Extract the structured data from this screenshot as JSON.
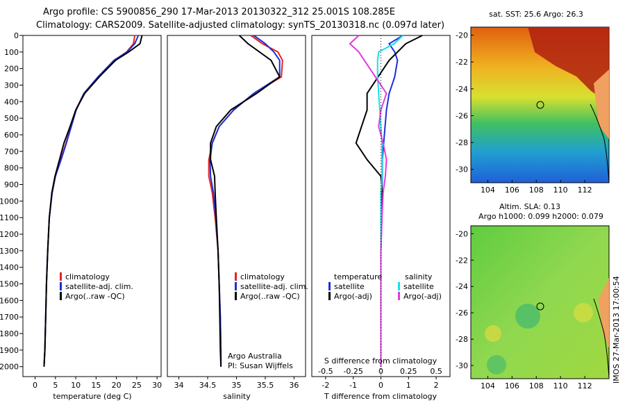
{
  "title": {
    "line1": "Argo profile: CS 5900856_290 17-Mar-2013 20130322_312 25.001S 108.285E",
    "line2": "Climatology: CARS2009. Satellite-adjusted climatology: synTS_20130318.nc (0.097d later)"
  },
  "depth_ticks": [
    "0",
    "100",
    "200",
    "300",
    "400",
    "500",
    "600",
    "700",
    "800",
    "900",
    "1000",
    "1100",
    "1200",
    "1300",
    "1400",
    "1500",
    "1600",
    "1700",
    "1800",
    "1900",
    "2000"
  ],
  "colors": {
    "climatology": "#e8221c",
    "satellite": "#1e2ed6",
    "argo": "#000000",
    "salinity_sat": "#16e0e8",
    "salinity_argo": "#e23ae0"
  },
  "panels": {
    "temperature": {
      "xlabel": "temperature (deg C)",
      "xticks": [
        "0",
        "5",
        "10",
        "15",
        "20",
        "25",
        "30"
      ],
      "legend": [
        "climatology",
        "satellite-adj. clim.",
        "Argo(..raw -QC)"
      ]
    },
    "salinity": {
      "xlabel": "salinity",
      "xticks": [
        "34",
        "34.5",
        "35",
        "35.5",
        "36"
      ],
      "legend": [
        "climatology",
        "satellite-adj. clim.",
        "Argo(..raw -QC)"
      ],
      "note1": "Argo Australia",
      "note2": "PI: Susan Wijffels"
    },
    "difference": {
      "xlabel_bottom": "T difference from climatology",
      "xlabel_top": "S difference from climatology",
      "xticks_bottom": [
        "-2",
        "-1",
        "0",
        "1",
        "2"
      ],
      "xticks_top": [
        "-0.5",
        "-0.25",
        "0",
        "0.25",
        "0.5"
      ],
      "legend_t_title": "temperature",
      "legend_t": [
        "satellite",
        "Argo(-adj)"
      ],
      "legend_s_title": "salinity",
      "legend_s": [
        "satellite",
        "Argo(-adj)"
      ]
    },
    "sst_map": {
      "title": "sat. SST: 25.6 Argo: 26.3",
      "yticks": [
        "-20",
        "-22",
        "-24",
        "-26",
        "-28",
        "-30"
      ],
      "xticks": [
        "104",
        "106",
        "108",
        "110",
        "112"
      ]
    },
    "sla_map": {
      "title1": "Altim. SLA: 0.13",
      "title2": "Argo h1000: 0.099 h2000: 0.079",
      "yticks": [
        "-20",
        "-22",
        "-24",
        "-26",
        "-28",
        "-30"
      ],
      "xticks": [
        "104",
        "106",
        "108",
        "110",
        "112"
      ]
    }
  },
  "stamp": "IMOS 27-Mar-2013 17:00:54",
  "chart_data": [
    {
      "type": "line",
      "title": "",
      "xlabel": "temperature (deg C)",
      "ylabel": "",
      "xlim": [
        -3,
        31
      ],
      "ylim": [
        2060,
        0
      ],
      "series": [
        {
          "name": "climatology",
          "x": [
            24.5,
            24.2,
            22.5,
            19.5,
            15.5,
            12.0,
            10.0,
            8.8,
            7.6,
            6.3,
            5.0,
            4.2,
            3.5,
            3.1,
            2.8,
            2.6,
            2.4,
            2.2
          ],
          "y": [
            0,
            50,
            100,
            150,
            250,
            350,
            450,
            550,
            650,
            750,
            850,
            950,
            1100,
            1300,
            1500,
            1700,
            1900,
            2000
          ]
        },
        {
          "name": "satellite-adj. clim.",
          "x": [
            25.4,
            24.5,
            22.6,
            19.4,
            15.5,
            12.0,
            10.1,
            8.9,
            7.7,
            6.4,
            5.0,
            4.2,
            3.5,
            3.1,
            2.8,
            2.6,
            2.4,
            2.2
          ],
          "y": [
            0,
            50,
            100,
            150,
            250,
            350,
            450,
            550,
            650,
            750,
            850,
            950,
            1100,
            1300,
            1500,
            1700,
            1900,
            2000
          ]
        },
        {
          "name": "Argo(..raw -QC)",
          "x": [
            26.3,
            25.8,
            23.0,
            19.8,
            15.8,
            12.2,
            10.0,
            8.6,
            7.1,
            6.0,
            4.9,
            4.1,
            3.5,
            3.1,
            2.8,
            2.6,
            2.4,
            2.2
          ],
          "y": [
            0,
            50,
            100,
            150,
            250,
            350,
            450,
            550,
            650,
            750,
            850,
            950,
            1100,
            1300,
            1500,
            1700,
            1900,
            2000
          ]
        }
      ]
    },
    {
      "type": "line",
      "title": "",
      "xlabel": "salinity",
      "ylabel": "",
      "xlim": [
        33.8,
        36.2
      ],
      "ylim": [
        2060,
        0
      ],
      "series": [
        {
          "name": "climatology",
          "x": [
            35.25,
            35.45,
            35.72,
            35.8,
            35.78,
            35.3,
            34.95,
            34.7,
            34.58,
            34.52,
            34.52,
            34.58,
            34.63,
            34.68,
            34.7,
            34.72,
            34.73,
            34.73
          ],
          "y": [
            0,
            50,
            100,
            150,
            250,
            350,
            450,
            550,
            650,
            750,
            850,
            950,
            1100,
            1300,
            1500,
            1700,
            1900,
            2000
          ]
        },
        {
          "name": "satellite-adj. clim.",
          "x": [
            35.3,
            35.5,
            35.65,
            35.75,
            35.75,
            35.3,
            34.95,
            34.7,
            34.58,
            34.54,
            34.55,
            34.6,
            34.64,
            34.68,
            34.7,
            34.72,
            34.73,
            34.73
          ],
          "y": [
            0,
            50,
            100,
            150,
            250,
            350,
            450,
            550,
            650,
            750,
            850,
            950,
            1100,
            1300,
            1500,
            1700,
            1900,
            2000
          ]
        },
        {
          "name": "Argo(..raw -QC)",
          "x": [
            35.05,
            35.2,
            35.4,
            35.6,
            35.75,
            35.35,
            34.9,
            34.65,
            34.55,
            34.55,
            34.62,
            34.63,
            34.65,
            34.68,
            34.7,
            34.71,
            34.72,
            34.73
          ],
          "y": [
            0,
            50,
            100,
            150,
            250,
            350,
            450,
            550,
            650,
            750,
            850,
            950,
            1100,
            1300,
            1500,
            1700,
            1900,
            2000
          ]
        }
      ]
    },
    {
      "type": "line",
      "title": "",
      "xlabel": "T difference from climatology",
      "ylabel": "",
      "xlim": [
        -2.5,
        2.5
      ],
      "ylim": [
        2060,
        0
      ],
      "series": [
        {
          "name": "temperature satellite",
          "x": [
            0.8,
            0.3,
            0.5,
            0.6,
            0.5,
            0.3,
            0.2,
            0.15,
            0.1,
            0.05,
            0.05,
            0.03,
            0.02,
            0.0,
            0.0,
            0.0,
            0.0,
            0.0
          ],
          "y": [
            0,
            50,
            100,
            150,
            250,
            350,
            450,
            550,
            650,
            750,
            850,
            950,
            1100,
            1300,
            1500,
            1700,
            1900,
            2000
          ]
        },
        {
          "name": "temperature Argo(-adj)",
          "x": [
            1.5,
            0.9,
            0.6,
            0.3,
            -0.1,
            -0.5,
            -0.5,
            -0.7,
            -0.9,
            -0.5,
            0.0,
            0.05,
            0.03,
            0.0,
            0.0,
            0.0,
            0.0,
            0.0
          ],
          "y": [
            0,
            50,
            100,
            150,
            250,
            350,
            450,
            550,
            650,
            750,
            850,
            950,
            1100,
            1300,
            1500,
            1700,
            1900,
            2000
          ]
        }
      ]
    },
    {
      "type": "line",
      "title": "",
      "xlabel": "S difference from climatology",
      "ylabel": "",
      "xlim": [
        -0.625,
        0.625
      ],
      "ylim": [
        2060,
        0
      ],
      "series": [
        {
          "name": "salinity satellite",
          "x": [
            0.2,
            0.12,
            -0.02,
            -0.03,
            -0.03,
            -0.02,
            -0.01,
            0.0,
            0.01,
            0.01,
            0.01,
            0.0,
            0.0,
            0.0,
            0.0,
            0.0,
            0.0,
            0.0
          ],
          "y": [
            0,
            50,
            100,
            150,
            250,
            350,
            450,
            550,
            650,
            750,
            850,
            950,
            1100,
            1300,
            1500,
            1700,
            1900,
            2000
          ]
        },
        {
          "name": "salinity Argo(-adj)",
          "x": [
            -0.2,
            -0.28,
            -0.2,
            -0.15,
            -0.05,
            0.05,
            0.0,
            -0.02,
            0.02,
            0.05,
            0.04,
            0.02,
            0.01,
            0.0,
            0.0,
            0.0,
            0.0,
            0.0
          ],
          "y": [
            0,
            50,
            100,
            150,
            250,
            350,
            450,
            550,
            650,
            750,
            850,
            950,
            1100,
            1300,
            1500,
            1700,
            1900,
            2000
          ]
        }
      ]
    }
  ]
}
